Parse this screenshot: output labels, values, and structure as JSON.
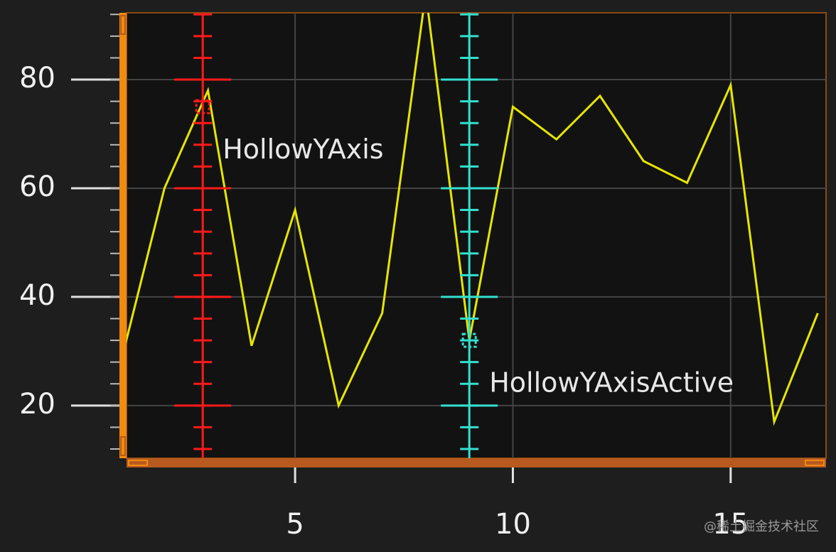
{
  "chart_data": {
    "type": "line",
    "x": [
      1,
      2,
      3,
      4,
      5,
      6,
      7,
      8,
      9,
      10,
      11,
      12,
      13,
      14,
      15,
      16,
      17
    ],
    "series": [
      {
        "color": "#e6e600",
        "values": [
          28,
          60,
          78,
          31,
          56,
          20,
          37,
          96,
          32,
          75,
          69,
          77,
          65,
          61,
          79,
          17,
          37
        ]
      }
    ],
    "xlim": [
      1.13,
      17.19
    ],
    "xticks": [
      5,
      10,
      15
    ],
    "ylim": [
      10.3,
      92.3
    ],
    "yticks": [
      20,
      40,
      60,
      80
    ],
    "grid": true,
    "cursors": [
      {
        "label": "HollowYAxis",
        "x": 2.88,
        "y": 75,
        "color": "#ff1a1a"
      },
      {
        "label": "HollowYAxisActive",
        "x": 9,
        "y": 32,
        "color": "#33e0d0"
      }
    ],
    "watermark": "@稀土掘金技术社区"
  }
}
